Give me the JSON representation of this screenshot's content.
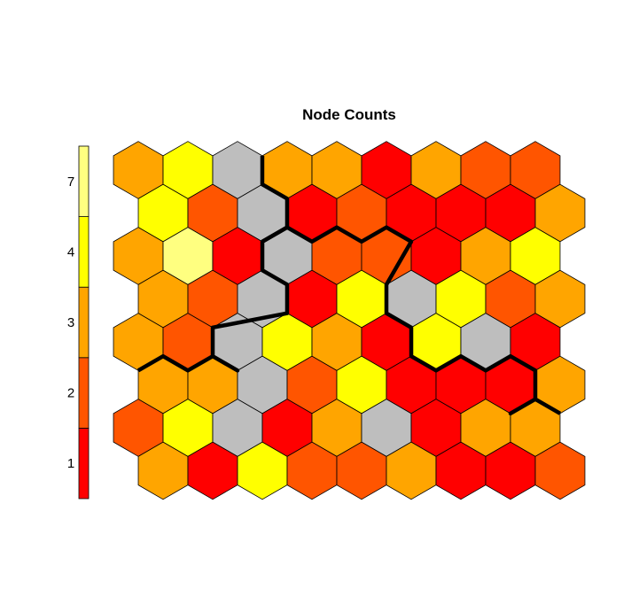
{
  "chart_data": {
    "type": "heatmap",
    "title": "Node Counts",
    "grid": {
      "rows": 8,
      "cols": 10,
      "topology": "hexagonal"
    },
    "legend": {
      "placement": "left",
      "labels": [
        "1",
        "2",
        "3",
        "4",
        "7"
      ],
      "colors": [
        "#ff0000",
        "#ff5500",
        "#ffa500",
        "#ffff00",
        "#ffff80"
      ]
    },
    "empty_color": "#bebebe",
    "cells": [
      [
        "3",
        "4",
        "empty",
        "3",
        "3",
        "1",
        "3",
        "2",
        "2",
        null
      ],
      [
        "4",
        "2",
        "empty",
        "1",
        "2",
        "1",
        "1",
        "1",
        "3",
        null
      ],
      [
        "3",
        "7",
        "1",
        "empty",
        "2",
        "2",
        "1",
        "3",
        "4",
        null
      ],
      [
        "3",
        "2",
        "empty",
        "1",
        "4",
        "empty",
        "4",
        "2",
        "3",
        null
      ],
      [
        "3",
        "2",
        "empty",
        "4",
        "3",
        "1",
        "4",
        "empty",
        "1",
        null
      ],
      [
        "3",
        "3",
        "empty",
        "2",
        "4",
        "1",
        "1",
        "1",
        "3",
        null
      ],
      [
        "2",
        "4",
        "empty",
        "1",
        "3",
        "empty",
        "1",
        "3",
        "3",
        null
      ],
      [
        "3",
        "1",
        "4",
        "2",
        "2",
        "3",
        "1",
        "1",
        "2",
        null
      ]
    ],
    "boundary_color": "#000000"
  }
}
